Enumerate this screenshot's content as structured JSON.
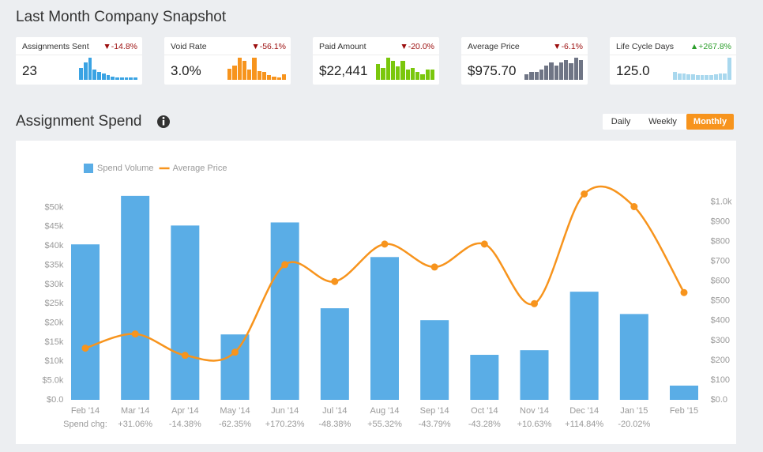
{
  "header": {
    "title": "Last Month Company Snapshot"
  },
  "kpis": [
    {
      "label": "Assignments Sent",
      "change": "▼-14.8%",
      "change_color": "#9b0d0d",
      "value": "23",
      "color": "#3aa3e3",
      "sparkline": [
        55,
        80,
        100,
        45,
        35,
        30,
        22,
        16,
        12,
        10,
        10,
        10,
        10
      ]
    },
    {
      "label": "Void Rate",
      "change": "▼-56.1%",
      "change_color": "#9b0d0d",
      "value": "3.0%",
      "color": "#f7941d",
      "sparkline": [
        50,
        65,
        100,
        85,
        45,
        100,
        40,
        35,
        20,
        15,
        10,
        25
      ]
    },
    {
      "label": "Paid Amount",
      "change": "▼-20.0%",
      "change_color": "#9b0d0d",
      "value": "$22,441",
      "color": "#7ac70c",
      "sparkline": [
        70,
        55,
        100,
        85,
        60,
        85,
        45,
        55,
        35,
        25,
        45,
        45
      ]
    },
    {
      "label": "Average Price",
      "change": "▼-6.1%",
      "change_color": "#9b0d0d",
      "value": "$975.70",
      "color": "#6f7585",
      "sparkline": [
        25,
        35,
        35,
        45,
        65,
        80,
        65,
        80,
        90,
        75,
        100,
        90
      ]
    },
    {
      "label": "Life Cycle Days",
      "change": "▲+267.8%",
      "change_color": "#2a9d2a",
      "value": "125.0",
      "color": "#a9d8ee",
      "sparkline": [
        35,
        30,
        30,
        25,
        25,
        20,
        20,
        20,
        20,
        25,
        30,
        30,
        100
      ]
    }
  ],
  "section": {
    "title": "Assignment Spend"
  },
  "toggle": {
    "options": [
      "Daily",
      "Weekly",
      "Monthly"
    ],
    "active": 2
  },
  "chart_data": {
    "type": "bar",
    "categories": [
      "Feb '14",
      "Mar '14",
      "Apr '14",
      "May '14",
      "Jun '14",
      "Jul '14",
      "Aug '14",
      "Sep '14",
      "Oct '14",
      "Nov '14",
      "Dec '14",
      "Jan '15",
      "Feb '15"
    ],
    "spend_change_label": "Spend chg:",
    "spend_change": [
      null,
      "+31.06%",
      "-14.38%",
      "-62.35%",
      "+170.23%",
      "-48.38%",
      "+55.32%",
      "-43.79%",
      "-43.28%",
      "+10.63%",
      "+114.84%",
      "-20.02%",
      null
    ],
    "series": [
      {
        "name": "Spend Volume",
        "type": "bar",
        "color": "#5aade6",
        "values": [
          40400,
          53000,
          45300,
          17000,
          46100,
          23800,
          37100,
          20700,
          11700,
          12900,
          28100,
          22300,
          3700
        ]
      },
      {
        "name": "Average Price",
        "type": "line",
        "axis": "y2",
        "color": "#f7941d",
        "values": [
          261,
          333,
          225,
          241,
          683,
          598,
          787,
          671,
          787,
          486,
          1040,
          976,
          542
        ]
      }
    ],
    "ylim": [
      0,
      54000
    ],
    "yticks": [
      {
        "value": 0,
        "label": "$0.0"
      },
      {
        "value": 5000,
        "label": "$5.0k"
      },
      {
        "value": 10000,
        "label": "$10k"
      },
      {
        "value": 15000,
        "label": "$15k"
      },
      {
        "value": 20000,
        "label": "$20k"
      },
      {
        "value": 25000,
        "label": "$25k"
      },
      {
        "value": 30000,
        "label": "$30k"
      },
      {
        "value": 35000,
        "label": "$35k"
      },
      {
        "value": 40000,
        "label": "$40k"
      },
      {
        "value": 45000,
        "label": "$45k"
      },
      {
        "value": 50000,
        "label": "$50k"
      }
    ],
    "y2lim": [
      0,
      1050
    ],
    "y2ticks": [
      {
        "value": 0,
        "label": "$0.0"
      },
      {
        "value": 100,
        "label": "$100"
      },
      {
        "value": 200,
        "label": "$200"
      },
      {
        "value": 300,
        "label": "$300"
      },
      {
        "value": 400,
        "label": "$400"
      },
      {
        "value": 500,
        "label": "$500"
      },
      {
        "value": 600,
        "label": "$600"
      },
      {
        "value": 700,
        "label": "$700"
      },
      {
        "value": 800,
        "label": "$800"
      },
      {
        "value": 900,
        "label": "$900"
      },
      {
        "value": 1000,
        "label": "$1.0k"
      }
    ],
    "grid": false,
    "legend": "top-left"
  }
}
